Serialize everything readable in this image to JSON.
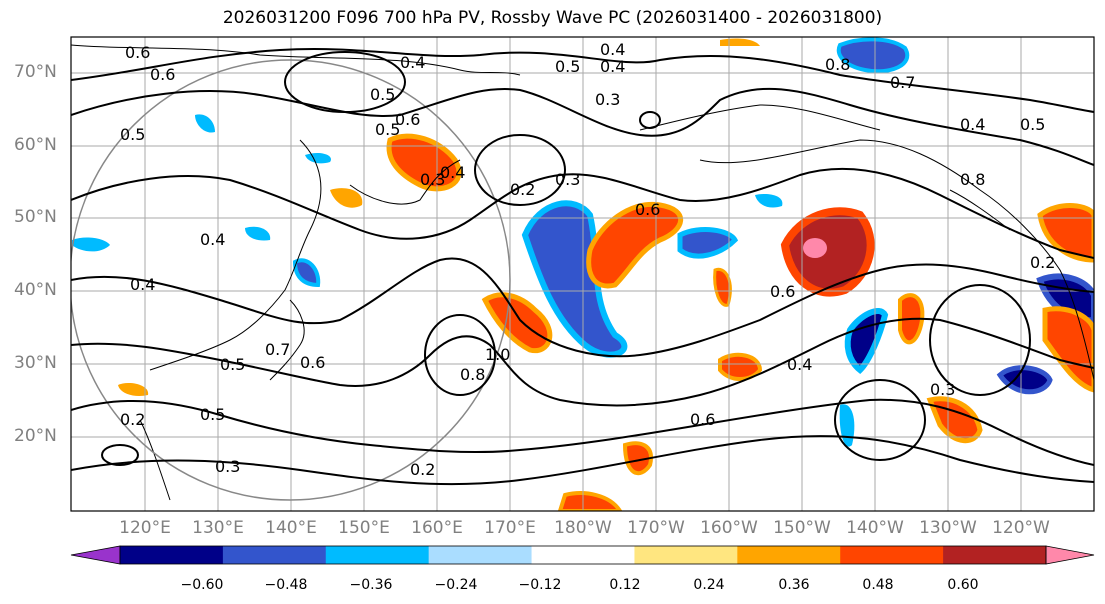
{
  "title": "2026031200 F096 700 hPa PV, Rossby Wave PC (2026031400 - 2026031800)",
  "lat_labels": [
    "70°N",
    "60°N",
    "50°N",
    "40°N",
    "30°N",
    "20°N"
  ],
  "lon_labels": [
    "120°E",
    "130°E",
    "140°E",
    "150°E",
    "160°E",
    "170°E",
    "180°W",
    "170°W",
    "160°W",
    "150°W",
    "140°W",
    "130°W",
    "120°W"
  ],
  "contour_labels": [
    "0.6",
    "0.6",
    "0.5",
    "0.4",
    "0.4",
    "0.5",
    "0.3",
    "0.2",
    "0.6",
    "0.4",
    "0.3",
    "0.3",
    "0.5",
    "0.4",
    "0.8",
    "0.7",
    "0.4",
    "0.5",
    "0.5",
    "0.4",
    "0.7",
    "0.5",
    "0.6",
    "0.5",
    "0.2",
    "0.2",
    "0.3",
    "0.8",
    "1.0",
    "0.6",
    "0.6",
    "0.4",
    "0.3",
    "0.2",
    "0.4",
    "0.8",
    "0.6"
  ],
  "colorbar": {
    "ticks": [
      "−0.60",
      "−0.48",
      "−0.36",
      "−0.24",
      "−0.12",
      "0.12",
      "0.24",
      "0.36",
      "0.48",
      "0.60"
    ],
    "colors": [
      "#9933cc",
      "#000088",
      "#3355cc",
      "#00bbff",
      "#aaddff",
      "#ffffff",
      "#ffe680",
      "#ffa500",
      "#ff4500",
      "#b22222",
      "#ff88aa"
    ]
  }
}
